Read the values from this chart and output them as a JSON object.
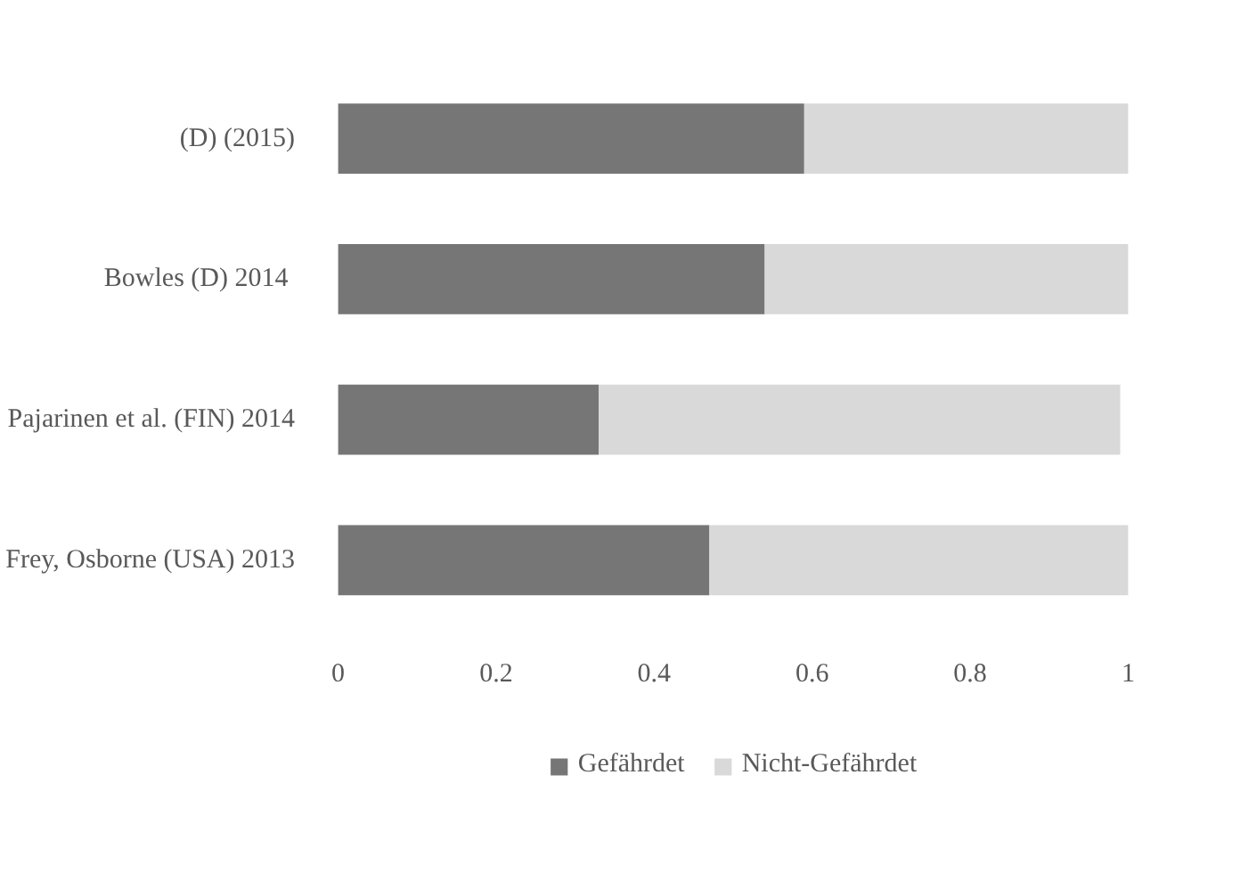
{
  "chart_data": {
    "type": "bar",
    "orientation": "horizontal",
    "stacked": true,
    "categories": [
      "(D) (2015)",
      "Bowles (D)  2014",
      "Pajarinen et al. (FIN) 2014",
      "Frey, Osborne (USA) 2013"
    ],
    "series": [
      {
        "name": "Gefährdet",
        "color": "#767676",
        "values": [
          0.59,
          0.54,
          0.33,
          0.47
        ]
      },
      {
        "name": "Nicht-Gefährdet",
        "color": "#d9d9d9",
        "values": [
          0.41,
          0.46,
          0.66,
          0.53
        ]
      }
    ],
    "xlim": [
      0,
      1
    ],
    "xticks": [
      0,
      0.2,
      0.4,
      0.6,
      0.8,
      1
    ],
    "grid": false,
    "legend": "bottom"
  }
}
